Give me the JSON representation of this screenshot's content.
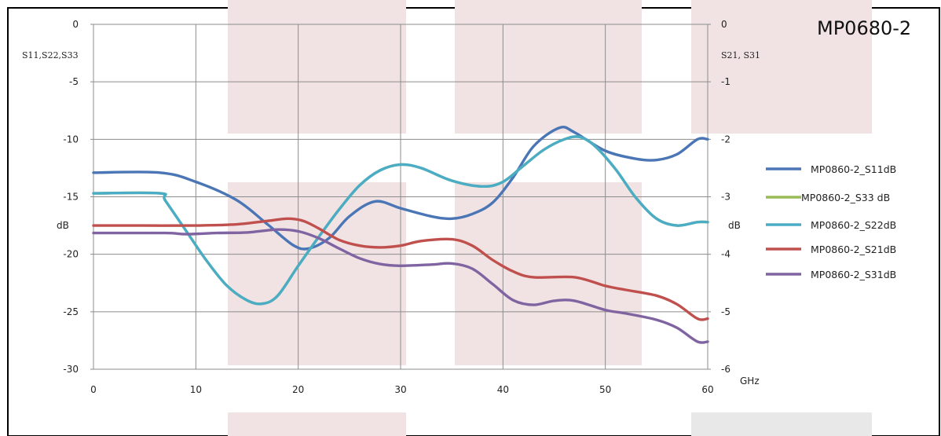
{
  "chart_data": {
    "type": "line",
    "title": "MP0680-2",
    "xlabel": "GHz",
    "xlim": [
      0,
      60
    ],
    "x_ticks": [
      "0",
      "10",
      "20",
      "30",
      "40",
      "50",
      "60"
    ],
    "y_left": {
      "label": "dB",
      "caption": "S11,S22,S33",
      "ylim": [
        -30,
        0
      ],
      "ticks": [
        "0",
        "-5",
        "-10",
        "-15",
        "-20",
        "-25",
        "-30"
      ]
    },
    "y_right": {
      "label": "dB",
      "caption": "S21, S31",
      "ylim": [
        -6,
        0
      ],
      "ticks": [
        "0",
        "-1",
        "-2",
        "-3",
        "-4",
        "-5",
        "-6"
      ]
    },
    "grid": true,
    "legend_position": "right",
    "series": [
      {
        "name": "MP0860-2_S11dB",
        "axis": "left",
        "color": "#4a76b6",
        "x": [
          0,
          6.5,
          10,
          14,
          17,
          19.5,
          21,
          23,
          25,
          27.5,
          30,
          33,
          35,
          37,
          39,
          41,
          43,
          45.5,
          47,
          50,
          53,
          55,
          57,
          59,
          60
        ],
        "y": [
          -12.9,
          -12.9,
          -13.7,
          -15.3,
          -17.4,
          -19.2,
          -19.5,
          -18.6,
          -16.7,
          -15.4,
          -16.0,
          -16.7,
          -16.9,
          -16.5,
          -15.5,
          -13.3,
          -10.6,
          -9.0,
          -9.4,
          -11.0,
          -11.7,
          -11.8,
          -11.3,
          -10.0,
          -10.0
        ]
      },
      {
        "name": "MP0860-2_S33 dB",
        "axis": "left",
        "color": "#9bbb59",
        "x": [
          0,
          6.5,
          7,
          9,
          11,
          13,
          15,
          16.5,
          18,
          20,
          22,
          24,
          26,
          28,
          30,
          32,
          35,
          38,
          40,
          42,
          44,
          46,
          47.5,
          49,
          51,
          53,
          55,
          57,
          59,
          60
        ],
        "y": [
          -14.7,
          -14.7,
          -15.3,
          -17.9,
          -20.5,
          -22.7,
          -24.0,
          -24.3,
          -23.6,
          -21.0,
          -18.5,
          -16.1,
          -14.0,
          -12.7,
          -12.2,
          -12.5,
          -13.6,
          -14.1,
          -13.7,
          -12.3,
          -10.9,
          -10.0,
          -9.8,
          -10.6,
          -12.6,
          -15.1,
          -16.9,
          -17.5,
          -17.2,
          -17.2
        ]
      },
      {
        "name": "MP0860-2_S22dB",
        "axis": "left",
        "color": "#4bacc6",
        "x": [
          0,
          6.5,
          7,
          9,
          11,
          13,
          15,
          16.5,
          18,
          20,
          22,
          24,
          26,
          28,
          30,
          32,
          35,
          38,
          40,
          42,
          44,
          46,
          47.5,
          49,
          51,
          53,
          55,
          57,
          59,
          60
        ],
        "y": [
          -14.7,
          -14.7,
          -15.3,
          -17.9,
          -20.5,
          -22.7,
          -24.0,
          -24.3,
          -23.6,
          -21.0,
          -18.5,
          -16.1,
          -14.0,
          -12.7,
          -12.2,
          -12.5,
          -13.6,
          -14.1,
          -13.7,
          -12.3,
          -10.9,
          -10.0,
          -9.8,
          -10.6,
          -12.6,
          -15.1,
          -16.9,
          -17.5,
          -17.2,
          -17.2
        ]
      },
      {
        "name": "MP0860-2_S21dB",
        "axis": "right",
        "color": "#c0504d",
        "x": [
          0,
          5,
          10,
          14,
          17,
          19,
          20.5,
          22,
          24,
          26,
          28,
          30,
          32,
          35,
          37,
          39,
          41,
          43,
          47,
          50,
          52,
          55,
          57,
          59,
          60
        ],
        "y": [
          -3.5,
          -3.5,
          -3.5,
          -3.48,
          -3.42,
          -3.38,
          -3.42,
          -3.55,
          -3.75,
          -3.85,
          -3.88,
          -3.85,
          -3.77,
          -3.74,
          -3.85,
          -4.1,
          -4.3,
          -4.4,
          -4.4,
          -4.55,
          -4.62,
          -4.72,
          -4.87,
          -5.12,
          -5.12
        ]
      },
      {
        "name": "MP0860-2_S31dB",
        "axis": "right",
        "color": "#8064a2",
        "x": [
          0,
          7,
          9,
          12,
          15,
          18,
          20,
          22,
          24,
          26,
          28,
          30,
          33,
          35,
          37,
          39,
          41,
          43,
          45,
          47,
          50,
          52,
          55,
          57,
          59,
          60
        ],
        "y": [
          -3.63,
          -3.63,
          -3.65,
          -3.63,
          -3.62,
          -3.57,
          -3.6,
          -3.72,
          -3.9,
          -4.07,
          -4.17,
          -4.2,
          -4.18,
          -4.16,
          -4.25,
          -4.52,
          -4.8,
          -4.88,
          -4.81,
          -4.81,
          -4.97,
          -5.03,
          -5.14,
          -5.28,
          -5.52,
          -5.52
        ]
      }
    ]
  }
}
